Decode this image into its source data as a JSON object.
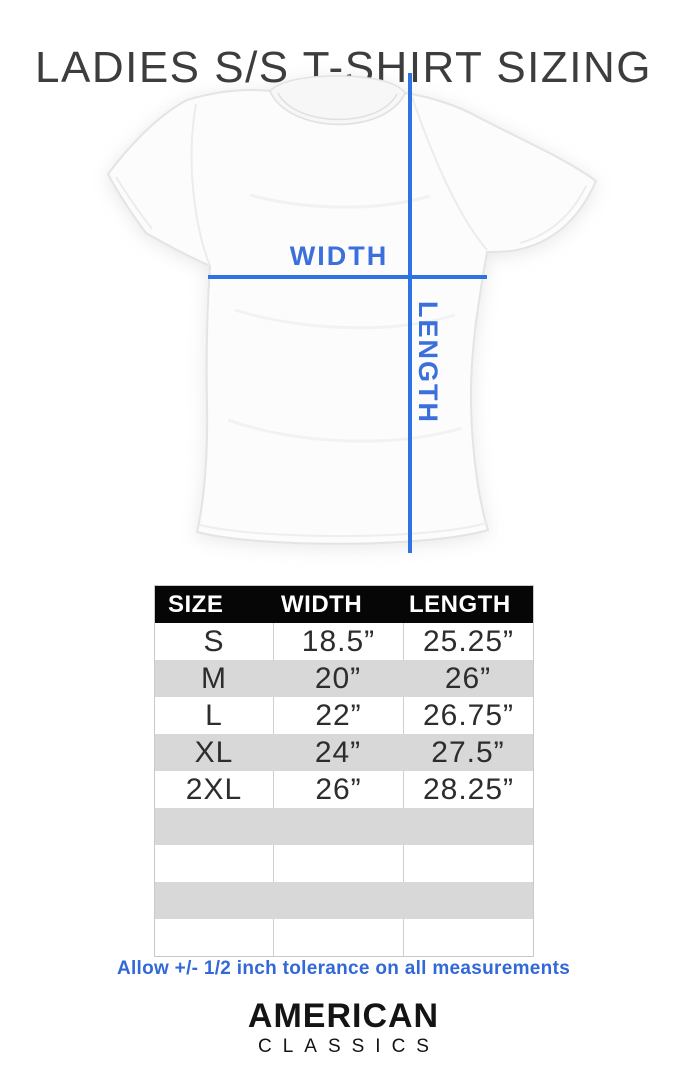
{
  "title": "LADIES S/S T-SHIRT SIZING",
  "diagram": {
    "width_label": "WIDTH",
    "length_label": "LENGTH"
  },
  "chart_data": {
    "type": "table",
    "title": "Ladies short-sleeve t-shirt size chart (inches)",
    "columns": [
      "SIZE",
      "WIDTH",
      "LENGTH"
    ],
    "rows": [
      {
        "size": "S",
        "width": "18.5”",
        "length": "25.25”",
        "shaded": false
      },
      {
        "size": "M",
        "width": "20”",
        "length": "26”",
        "shaded": true
      },
      {
        "size": "L",
        "width": "22”",
        "length": "26.75”",
        "shaded": false
      },
      {
        "size": "XL",
        "width": "24”",
        "length": "27.5”",
        "shaded": true
      },
      {
        "size": "2XL",
        "width": "26”",
        "length": "28.25”",
        "shaded": false
      },
      {
        "size": "",
        "width": "",
        "length": "",
        "shaded": true
      },
      {
        "size": "",
        "width": "",
        "length": "",
        "shaded": false
      },
      {
        "size": "",
        "width": "",
        "length": "",
        "shaded": true
      },
      {
        "size": "",
        "width": "",
        "length": "",
        "shaded": false
      }
    ]
  },
  "tolerance_note": "Allow +/- 1/2 inch tolerance on all measurements",
  "brand": {
    "name": "AMERICAN",
    "subname": "C L A S S I C S",
    "subname_plain": "CLASSICS"
  },
  "colors": {
    "accent_blue_line": "#2e73e4",
    "label_blue": "#3b6fdc",
    "note_blue": "#3268d8",
    "header_bg": "#060606",
    "header_text": "#ffffff",
    "row_shaded": "#d8d8d8",
    "row_border": "#cfcfcf",
    "title_gray": "#3d3d3d"
  }
}
